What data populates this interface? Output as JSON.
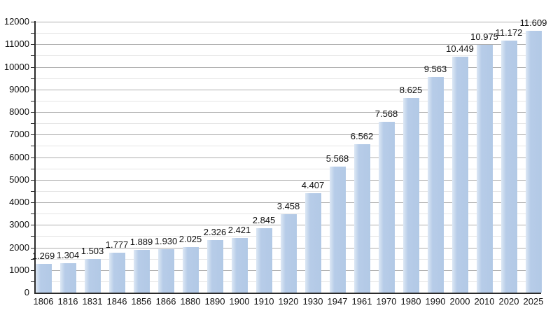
{
  "chart_data": {
    "type": "bar",
    "title": "",
    "xlabel": "",
    "ylabel": "",
    "legend": "none",
    "grid": true,
    "categories": [
      "1806",
      "1816",
      "1831",
      "1846",
      "1856",
      "1866",
      "1880",
      "1890",
      "1900",
      "1910",
      "1920",
      "1930",
      "1947",
      "1961",
      "1970",
      "1980",
      "1990",
      "2000",
      "2010",
      "2020",
      "2025"
    ],
    "values": [
      1269,
      1304,
      1503,
      1777,
      1889,
      1930,
      2025,
      2326,
      2421,
      2845,
      3458,
      4407,
      5568,
      6562,
      7568,
      8625,
      9563,
      10449,
      10975,
      11172,
      11609
    ],
    "value_labels": [
      "1.269",
      "1.304",
      "1.503",
      "1.777",
      "1.889",
      "1.930",
      "2.025",
      "2.326",
      "2.421",
      "2.845",
      "3.458",
      "4.407",
      "5.568",
      "6.562",
      "7.568",
      "8.625",
      "9.563",
      "10.449",
      "10.975",
      "11.172",
      "11.609"
    ],
    "y_axis": {
      "min": 0,
      "max": 12000,
      "major_step": 1000,
      "minor_step": 500,
      "tick_labels": [
        "0",
        "1000",
        "2000",
        "3000",
        "4000",
        "5000",
        "6000",
        "7000",
        "8000",
        "9000",
        "10000",
        "11000",
        "12000"
      ]
    },
    "ylim": [
      0,
      12000
    ],
    "colors": {
      "bar": "#b7cce8",
      "bar_edge_highlight": "#dde8f5",
      "grid_major": "#aeaeae",
      "grid_minor": "#e5e5e5",
      "axis": "#2b2b2b",
      "label": "#111111",
      "background": "#ffffff"
    }
  }
}
